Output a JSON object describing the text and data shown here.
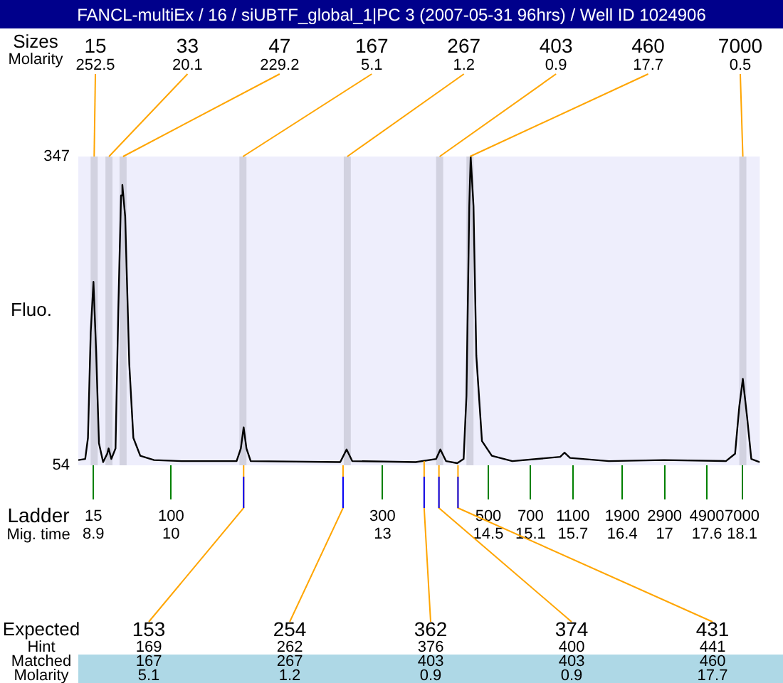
{
  "chart_data": {
    "type": "line",
    "title": "FANCL-multiEx / 16 / siUBTF_global_1|PC 3 (2007-05-31 96hrs) / Well ID 1024906",
    "ylabel": "Fluo.",
    "xlabel": "Ladder\nMig. time",
    "color": "#000000",
    "x": [
      8.685,
      8.783,
      8.822,
      8.861,
      8.9,
      8.939,
      8.978,
      9.037,
      9.095,
      9.115,
      9.154,
      9.213,
      9.252,
      9.291,
      9.31,
      9.35,
      9.408,
      9.466,
      9.564,
      9.759,
      10.15,
      10.93,
      10.99,
      11.03,
      11.07,
      11.13,
      12.4,
      12.49,
      12.57,
      13.47,
      13.76,
      13.82,
      13.9,
      14.06,
      14.15,
      14.19,
      14.23,
      14.25,
      14.29,
      14.33,
      14.41,
      14.55,
      14.84,
      15.52,
      15.58,
      15.66,
      16.21,
      16.99,
      17.87,
      18.0,
      18.06,
      18.11,
      18.17,
      18.23,
      18.35
    ],
    "values": [
      59,
      60,
      80,
      180,
      228,
      160,
      75,
      57,
      65,
      70,
      60,
      70,
      200,
      310,
      320,
      290,
      150,
      80,
      63,
      59,
      58,
      58,
      70,
      90,
      70,
      58,
      57,
      69,
      58,
      57,
      60,
      69,
      58,
      56,
      60,
      120,
      300,
      347,
      300,
      158,
      77,
      63,
      58,
      62,
      66,
      61,
      58,
      59,
      58,
      65,
      110,
      136,
      100,
      60,
      57
    ],
    "xlim": [
      8.685,
      18.35
    ],
    "xticks": [
      8.9,
      10,
      13,
      14.5,
      15.1,
      15.7,
      16.4,
      17,
      17.6,
      18.1
    ],
    "ylim": [
      54,
      347
    ],
    "yticks": [
      54,
      347
    ],
    "grid": false,
    "legend": false,
    "marker": "none",
    "bands": [
      {
        "axis": "x",
        "from": 8.86,
        "to": 8.96,
        "color": "#d2d2e0"
      },
      {
        "axis": "x",
        "from": 9.07,
        "to": 9.17,
        "color": "#d2d2e0"
      },
      {
        "axis": "x",
        "from": 9.27,
        "to": 9.37,
        "color": "#d2d2e0"
      },
      {
        "axis": "x",
        "from": 10.97,
        "to": 11.07,
        "color": "#d2d2e0"
      },
      {
        "axis": "x",
        "from": 12.45,
        "to": 12.55,
        "color": "#d2d2e0"
      },
      {
        "axis": "x",
        "from": 13.76,
        "to": 13.86,
        "color": "#d2d2e0"
      },
      {
        "axis": "x",
        "from": 14.19,
        "to": 14.29,
        "color": "#d2d2e0"
      },
      {
        "axis": "x",
        "from": 18.06,
        "to": 18.16,
        "color": "#d2d2e0"
      }
    ],
    "annotations": [
      "15",
      "100",
      "300",
      "500",
      "700",
      "1100",
      "1900",
      "2900",
      "4900",
      "7000",
      {
        "text": "153\n169\n167\n5.1",
        "x": 11.03
      },
      {
        "text": "254\n262\n267\n1.2",
        "x": 12.44
      },
      {
        "text": "362\n376\n403\n0.9",
        "x": 13.59,
        "y": 58
      },
      {
        "text": "374\n400\n403\n0.9",
        "x": 13.8
      },
      {
        "text": "431\n441\n460\n17.7",
        "x": 14.07
      },
      "Sizes\nMolarity",
      "Expected\nHint\nMatched\nMolarity",
      {
        "text": "15\n252.5",
        "x": 8.91
      },
      {
        "text": "33\n20.1",
        "x": 9.12
      },
      {
        "text": "47\n229.2",
        "x": 9.32
      },
      {
        "text": "167\n5.1",
        "x": 11.02
      },
      {
        "text": "267\n1.2",
        "x": 12.5
      },
      {
        "text": "403\n0.9",
        "x": 13.81
      },
      {
        "text": "460\n17.7",
        "x": 14.24
      },
      {
        "text": "7000\n0.5",
        "x": 18.11
      }
    ]
  }
}
